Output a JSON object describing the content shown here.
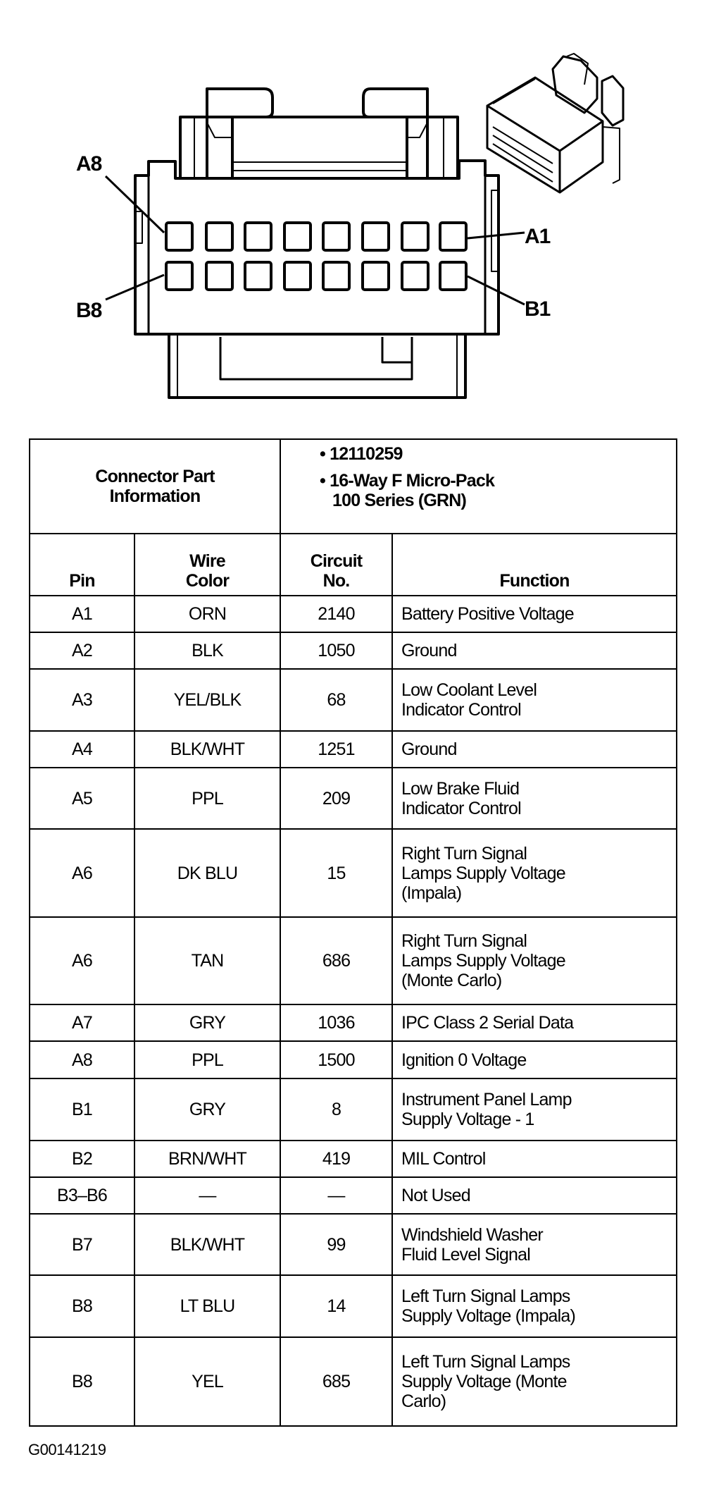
{
  "diagram": {
    "labels": {
      "a8": "A8",
      "a1": "A1",
      "b8": "B8",
      "b1": "B1"
    }
  },
  "table": {
    "part_info_label_line1": "Connector Part",
    "part_info_label_line2": "Information",
    "part_number": "• 12110259",
    "part_desc_line1": "• 16-Way F Micro-Pack",
    "part_desc_line2": "100 Series (GRN)",
    "headers": {
      "pin": "Pin",
      "wire_color_line1": "Wire",
      "wire_color_line2": "Color",
      "circuit_line1": "Circuit",
      "circuit_line2": "No.",
      "function": "Function"
    },
    "rows": [
      {
        "pin": "A1",
        "color": "ORN",
        "circuit": "2140",
        "function": [
          "Battery Positive Voltage"
        ]
      },
      {
        "pin": "A2",
        "color": "BLK",
        "circuit": "1050",
        "function": [
          "Ground"
        ]
      },
      {
        "pin": "A3",
        "color": "YEL/BLK",
        "circuit": "68",
        "function": [
          "Low Coolant Level",
          "Indicator Control"
        ]
      },
      {
        "pin": "A4",
        "color": "BLK/WHT",
        "circuit": "1251",
        "function": [
          "Ground"
        ]
      },
      {
        "pin": "A5",
        "color": "PPL",
        "circuit": "209",
        "function": [
          "Low Brake Fluid",
          "Indicator Control"
        ]
      },
      {
        "pin": "A6",
        "color": "DK BLU",
        "circuit": "15",
        "function": [
          "Right Turn Signal",
          "Lamps Supply Voltage",
          "(Impala)"
        ]
      },
      {
        "pin": "A6",
        "color": "TAN",
        "circuit": "686",
        "function": [
          "Right Turn Signal",
          "Lamps Supply Voltage",
          "(Monte Carlo)"
        ]
      },
      {
        "pin": "A7",
        "color": "GRY",
        "circuit": "1036",
        "function": [
          "IPC Class 2 Serial Data"
        ]
      },
      {
        "pin": "A8",
        "color": "PPL",
        "circuit": "1500",
        "function": [
          "Ignition 0 Voltage"
        ]
      },
      {
        "pin": "B1",
        "color": "GRY",
        "circuit": "8",
        "function": [
          "Instrument Panel Lamp",
          "Supply Voltage - 1"
        ]
      },
      {
        "pin": "B2",
        "color": "BRN/WHT",
        "circuit": "419",
        "function": [
          "MIL Control"
        ]
      },
      {
        "pin": "B3–B6",
        "color": "—",
        "circuit": "—",
        "function": [
          "Not Used"
        ]
      },
      {
        "pin": "B7",
        "color": "BLK/WHT",
        "circuit": "99",
        "function": [
          "Windshield Washer",
          "Fluid Level Signal"
        ]
      },
      {
        "pin": "B8",
        "color": "LT BLU",
        "circuit": "14",
        "function": [
          "Left Turn Signal Lamps",
          "Supply Voltage (Impala)"
        ]
      },
      {
        "pin": "B8",
        "color": "YEL",
        "circuit": "685",
        "function": [
          "Left Turn Signal Lamps",
          "Supply Voltage (Monte",
          "Carlo)"
        ]
      }
    ]
  },
  "footer": {
    "figure_id": "G00141219"
  }
}
